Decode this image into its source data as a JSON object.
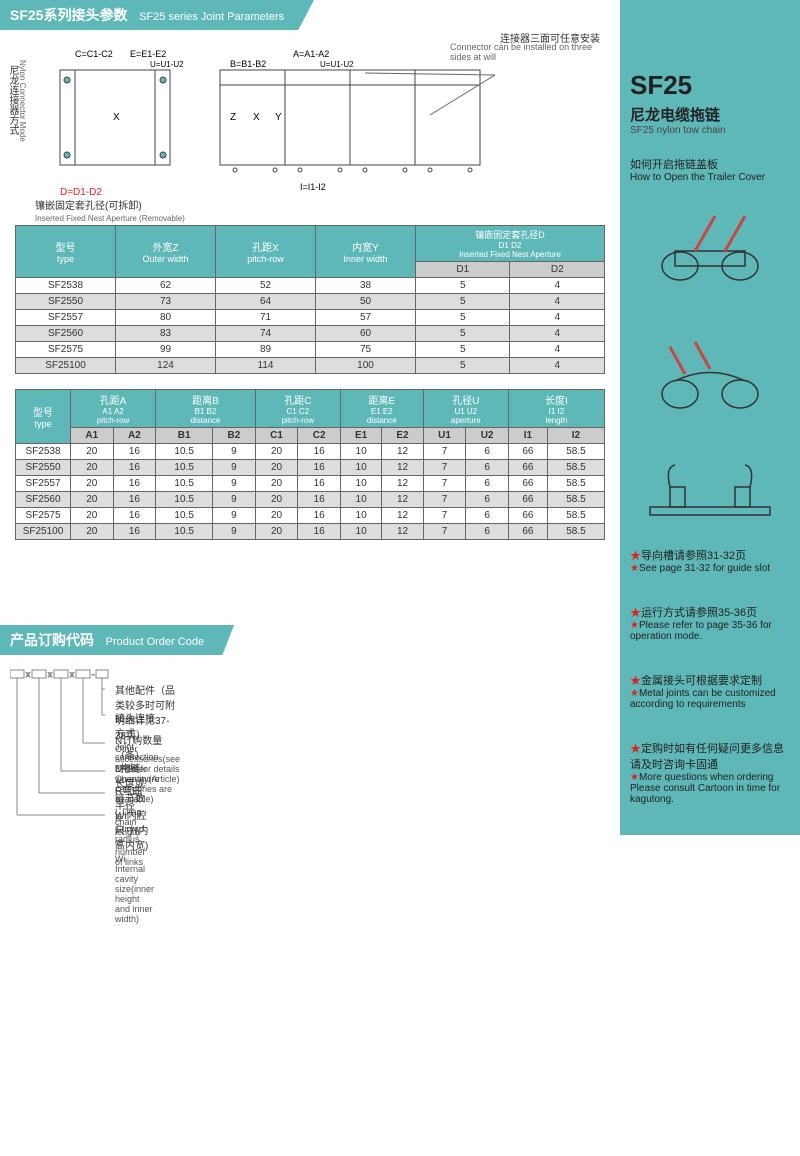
{
  "header1": {
    "cn": "SF25系列接头参数",
    "en": "SF25 series Joint Parameters"
  },
  "diagram": {
    "vertical_label_cn": "尼龙连接器方式",
    "vertical_label_en": "Nylon Connector Mode",
    "top_labels": [
      "C=C1-C2",
      "E=E1-E2",
      "U=U1-U2",
      "A=A1-A2",
      "B=B1-B2",
      "U=U1-U2"
    ],
    "note_right_cn": "连接器三面可任意安装",
    "note_right_en": "Connector can be installed on three sides at will",
    "dim_x": "X",
    "dim_z": "Z",
    "dim_y": "Y",
    "dim_i": "I=I1-I2",
    "d_label": "D=D1-D2",
    "bottom_cn": "镶嵌固定套孔径(可拆卸)",
    "bottom_en": "Inserted Fixed Nest Aperture (Removable)"
  },
  "table1": {
    "headers": [
      {
        "cn": "型号",
        "en": "type"
      },
      {
        "cn": "外宽Z",
        "en": "Outer width"
      },
      {
        "cn": "孔距X",
        "en": "pitch-row"
      },
      {
        "cn": "内宽Y",
        "en": "Inner width"
      },
      {
        "cn": "镶嵌固定套孔径D",
        "en": "D1  D2\nInserted Fixed Nest Aperture"
      }
    ],
    "sub": [
      "D1",
      "D2"
    ],
    "rows": [
      [
        "SF2538",
        "62",
        "52",
        "38",
        "5",
        "4"
      ],
      [
        "SF2550",
        "73",
        "64",
        "50",
        "5",
        "4"
      ],
      [
        "SF2557",
        "80",
        "71",
        "57",
        "5",
        "4"
      ],
      [
        "SF2560",
        "83",
        "74",
        "60",
        "5",
        "4"
      ],
      [
        "SF2575",
        "99",
        "89",
        "75",
        "5",
        "4"
      ],
      [
        "SF25100",
        "124",
        "114",
        "100",
        "5",
        "4"
      ]
    ]
  },
  "table2": {
    "headers": [
      {
        "cn": "型号",
        "en": "type"
      },
      {
        "cn": "孔距A",
        "sub": "A1 A2",
        "en": "pitch-row"
      },
      {
        "cn": "距离B",
        "sub": "B1 B2",
        "en": "distance"
      },
      {
        "cn": "孔距C",
        "sub": "C1 C2",
        "en": "pitch-row"
      },
      {
        "cn": "距离E",
        "sub": "E1 E2",
        "en": "distance"
      },
      {
        "cn": "孔径U",
        "sub": "U1 U2",
        "en": "aperture"
      },
      {
        "cn": "长度I",
        "sub": "I1 I2",
        "en": "length"
      }
    ],
    "sub": [
      "A1",
      "A2",
      "B1",
      "B2",
      "C1",
      "C2",
      "E1",
      "E2",
      "U1",
      "U2",
      "I1",
      "I2"
    ],
    "rows": [
      [
        "SF2538",
        "20",
        "16",
        "10.5",
        "9",
        "20",
        "16",
        "10",
        "12",
        "7",
        "6",
        "66",
        "58.5"
      ],
      [
        "SF2550",
        "20",
        "16",
        "10.5",
        "9",
        "20",
        "16",
        "10",
        "12",
        "7",
        "6",
        "66",
        "58.5"
      ],
      [
        "SF2557",
        "20",
        "16",
        "10.5",
        "9",
        "20",
        "16",
        "10",
        "12",
        "7",
        "6",
        "66",
        "58.5"
      ],
      [
        "SF2560",
        "20",
        "16",
        "10.5",
        "9",
        "20",
        "16",
        "10",
        "12",
        "7",
        "6",
        "66",
        "58.5"
      ],
      [
        "SF2575",
        "20",
        "16",
        "10.5",
        "9",
        "20",
        "16",
        "10",
        "12",
        "7",
        "6",
        "66",
        "58.5"
      ],
      [
        "SF25100",
        "20",
        "16",
        "10.5",
        "9",
        "20",
        "16",
        "10",
        "12",
        "7",
        "6",
        "66",
        "58.5"
      ]
    ]
  },
  "header2": {
    "cn": "产品订购代码",
    "en": "Product Order Code"
  },
  "order": {
    "lines": [
      {
        "cn": "其他配件（品类较多时可附明细详见37-38页）",
        "en": "Other accessories(see 37-38 for details when more categories are available)"
      },
      {
        "cn": "接头连接方式",
        "en": "Joint connection mode"
      },
      {
        "cn": "N订购数量（条）",
        "en": "N Order Quantity(Article)"
      },
      {
        "cn": "L拖链长度或链节数",
        "en": "L Drag chain length or number of links"
      },
      {
        "cn": "R弯曲半径",
        "en": "R Curved radius"
      },
      {
        "cn": "Wi内腔尺寸(内高内宽)",
        "en": "Wi Internal cavity size(inner height and inner width)"
      }
    ]
  },
  "sidebar": {
    "title": "SF25",
    "sub_cn": "尼龙电缆拖链",
    "sub_en": "SF25 nylon tow chain",
    "howto_cn": "如何开启拖链盖板",
    "howto_en": "How to Open the Trailer Cover",
    "notes": [
      {
        "cn": "导向槽请参照31-32页",
        "en": "See page 31-32 for guide slot"
      },
      {
        "cn": "运行方式请参照35-36页",
        "en": "Please refer to page 35-36 for operation mode."
      },
      {
        "cn": "金属接头可根据要求定制",
        "en": "Metal joints can be customized according to requirements"
      },
      {
        "cn": "定购时如有任何疑问更多信息请及时咨询卡固通",
        "en": "More questions when ordering Please consult Cartoon in time for kagutong."
      }
    ]
  },
  "colors": {
    "teal": "#5eb8b8",
    "red": "#d22",
    "gray": "#ccc"
  }
}
